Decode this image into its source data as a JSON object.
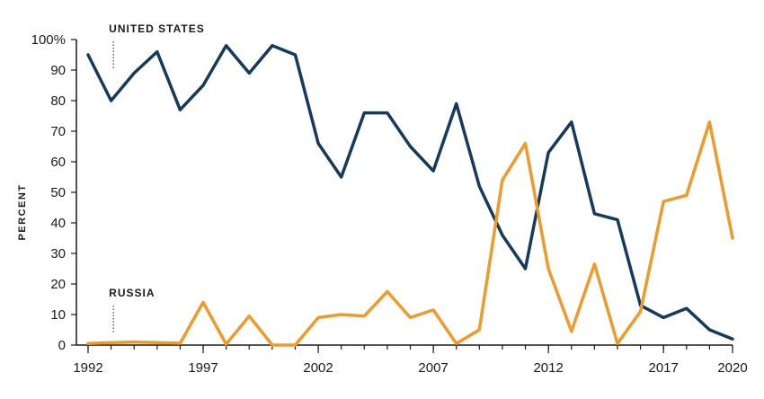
{
  "chart_data": {
    "type": "line",
    "ylabel": "PERCENT",
    "xlim": [
      1992,
      2020
    ],
    "ylim": [
      0,
      100
    ],
    "x_ticks": [
      "1992",
      "1997",
      "2002",
      "2007",
      "2012",
      "2017",
      "2020"
    ],
    "y_ticks": [
      "100%",
      "90",
      "80",
      "70",
      "60",
      "50",
      "40",
      "30",
      "20",
      "10",
      "0"
    ],
    "grid": false,
    "x": [
      1992,
      1993,
      1994,
      1995,
      1996,
      1997,
      1998,
      1999,
      2000,
      2001,
      2002,
      2003,
      2004,
      2005,
      2006,
      2007,
      2008,
      2009,
      2010,
      2011,
      2012,
      2013,
      2014,
      2015,
      2016,
      2017,
      2018,
      2019,
      2020
    ],
    "series": [
      {
        "name": "UNITED STATES",
        "color": "#163a5c",
        "values": [
          95,
          80,
          89,
          96,
          77,
          85,
          98,
          89,
          98,
          95,
          66,
          55,
          76,
          76,
          65,
          57,
          79,
          52,
          36,
          25,
          63,
          73,
          43,
          41,
          13,
          9,
          12,
          5,
          2
        ]
      },
      {
        "name": "RUSSIA",
        "color": "#f09a2a",
        "values": [
          0.5,
          0.8,
          1,
          0.8,
          0.6,
          14,
          0.3,
          9.5,
          0,
          0,
          9,
          10,
          9.5,
          17.5,
          9,
          11.5,
          0.5,
          5,
          54,
          66,
          25,
          4.5,
          26.5,
          0.5,
          11,
          47,
          49,
          73,
          35
        ]
      }
    ]
  }
}
